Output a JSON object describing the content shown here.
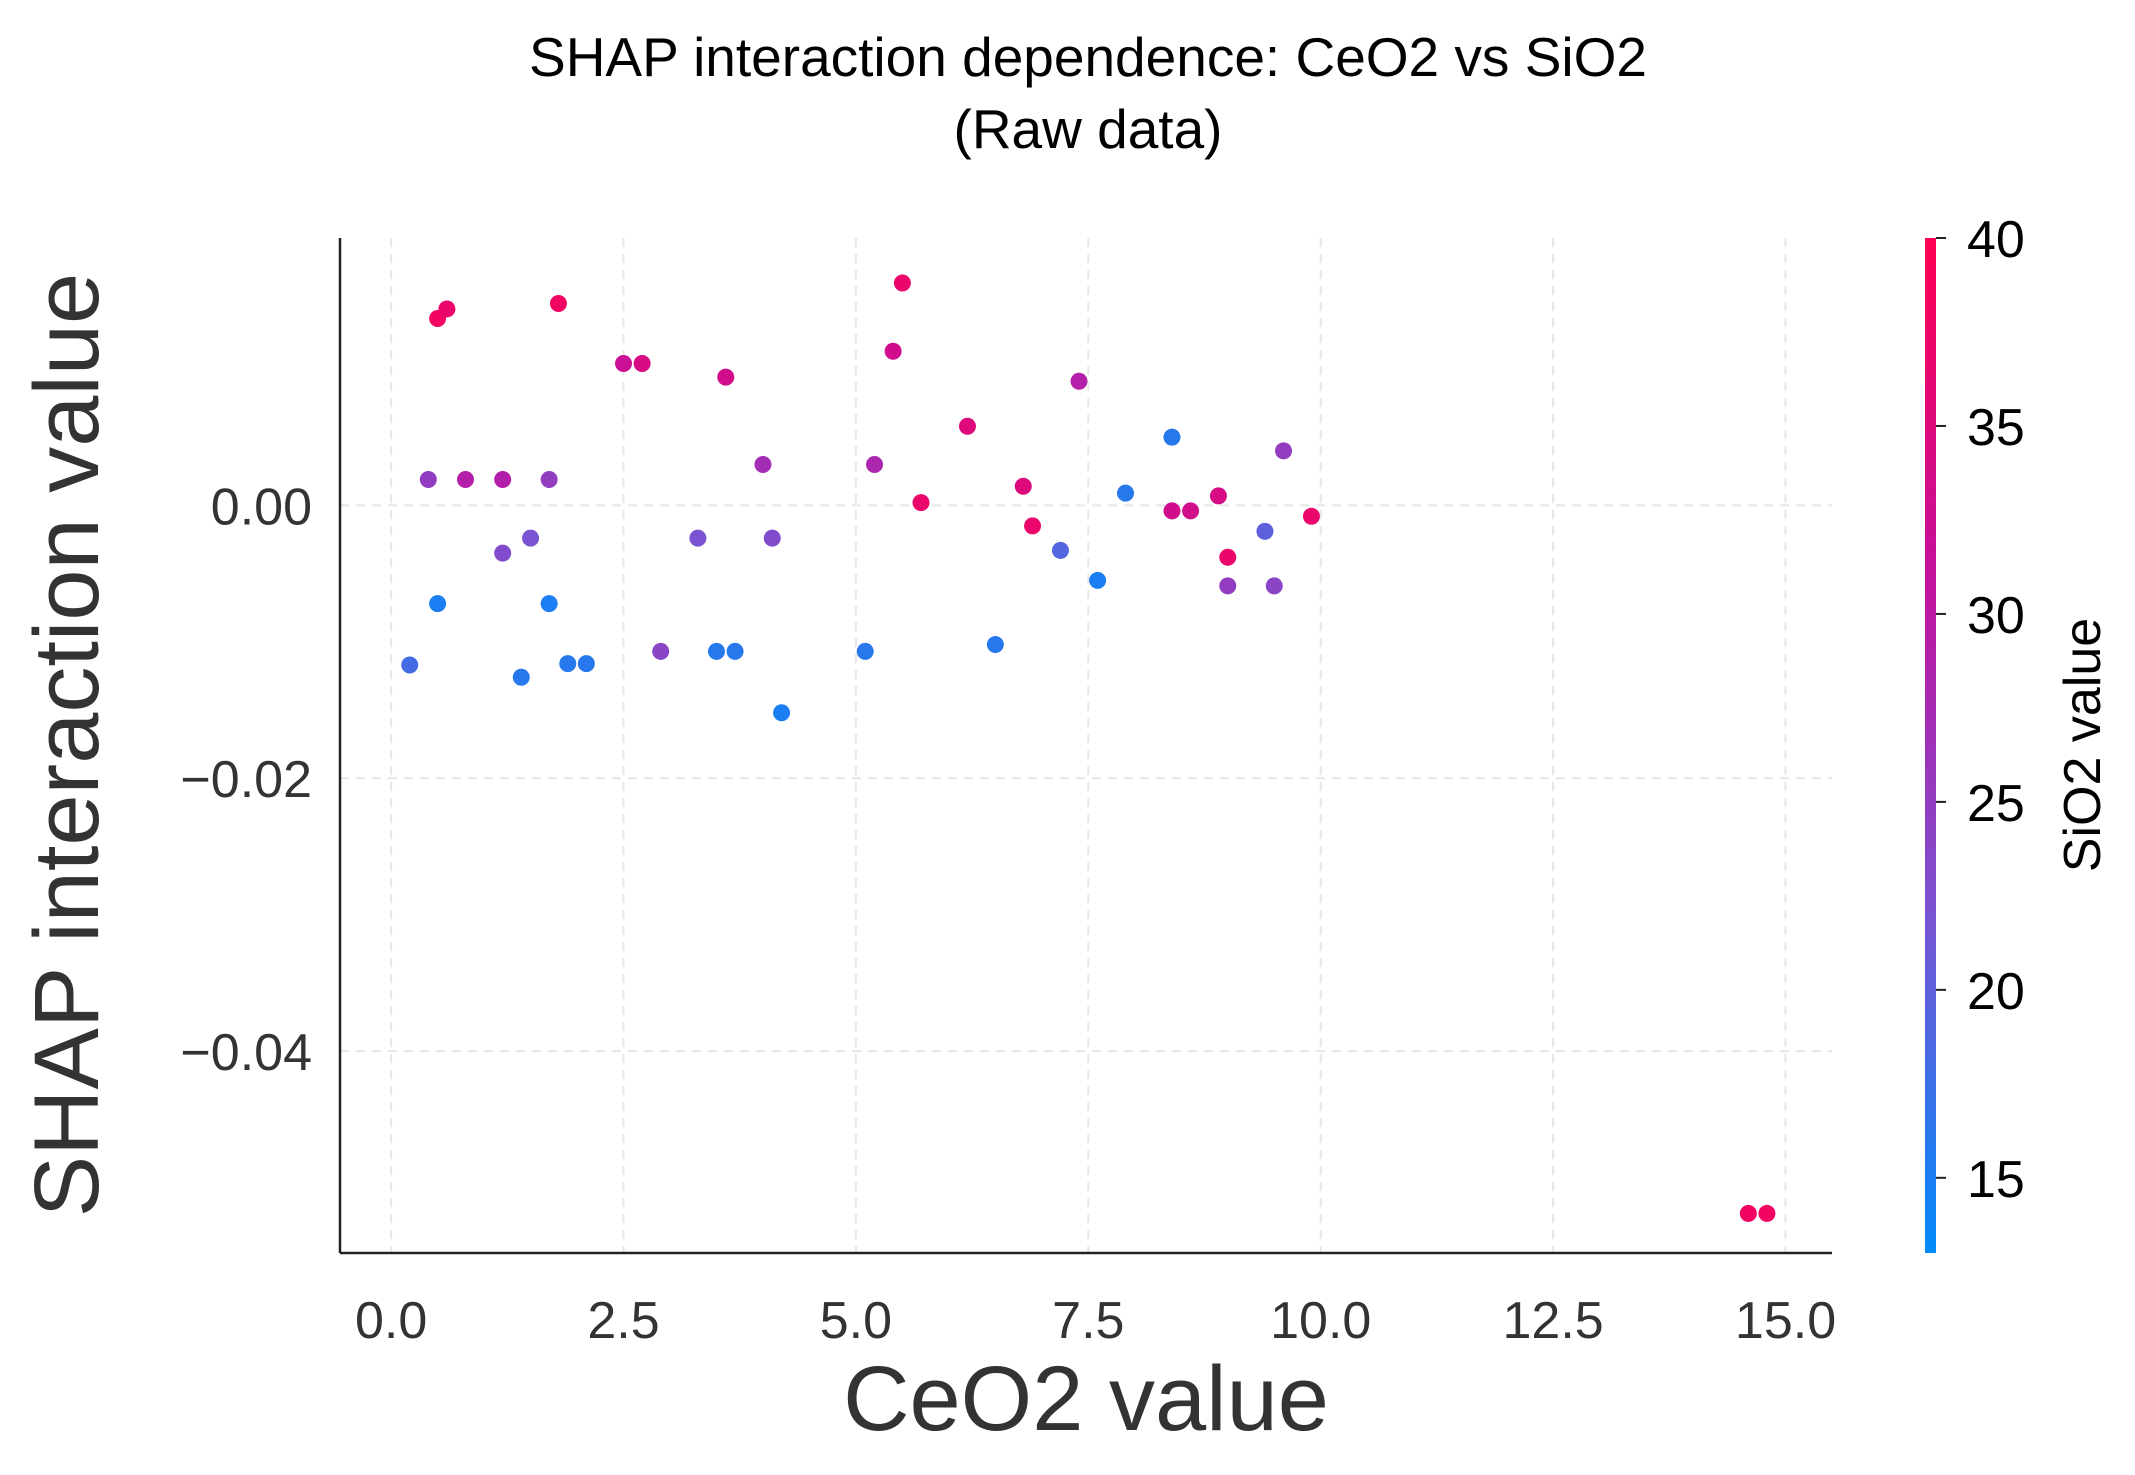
{
  "chart_data": {
    "type": "scatter",
    "title": "SHAP interaction dependence: CeO2 vs SiO2",
    "subtitle": "(Raw data)",
    "xlabel": "CeO2 value",
    "ylabel": "SHAP interaction value",
    "xlim": [
      -0.55,
      15.5
    ],
    "ylim": [
      -0.0548,
      0.0196
    ],
    "xticks": [
      0.0,
      2.5,
      5.0,
      7.5,
      10.0,
      12.5,
      15.0
    ],
    "xtick_labels": [
      "0.0",
      "2.5",
      "5.0",
      "7.5",
      "10.0",
      "12.5",
      "15.0"
    ],
    "yticks": [
      0.0,
      -0.02,
      -0.04
    ],
    "ytick_labels": [
      "0.00",
      "−0.02",
      "−0.04"
    ],
    "grid": true,
    "colorbar": {
      "label": "SiO2 value",
      "range": [
        13,
        40
      ],
      "ticks": [
        15,
        20,
        25,
        30,
        35,
        40
      ],
      "tick_labels": [
        "15",
        "20",
        "25",
        "30",
        "35",
        "40"
      ],
      "colors": [
        "#008afb",
        "#7854d2",
        "#c2129e",
        "#ff0052"
      ]
    },
    "points": [
      {
        "x": 0.2,
        "y": -0.0117,
        "c": 18
      },
      {
        "x": 0.4,
        "y": 0.0019,
        "c": 25
      },
      {
        "x": 0.5,
        "y": 0.0137,
        "c": 38
      },
      {
        "x": 0.5,
        "y": -0.0072,
        "c": 15
      },
      {
        "x": 0.6,
        "y": 0.0144,
        "c": 37
      },
      {
        "x": 0.8,
        "y": 0.0019,
        "c": 29
      },
      {
        "x": 1.2,
        "y": 0.0019,
        "c": 29
      },
      {
        "x": 1.2,
        "y": -0.0035,
        "c": 23
      },
      {
        "x": 1.4,
        "y": -0.0126,
        "c": 16
      },
      {
        "x": 1.5,
        "y": -0.0024,
        "c": 22
      },
      {
        "x": 1.7,
        "y": 0.0019,
        "c": 25
      },
      {
        "x": 1.7,
        "y": -0.0072,
        "c": 15
      },
      {
        "x": 1.8,
        "y": 0.0148,
        "c": 38
      },
      {
        "x": 1.9,
        "y": -0.0116,
        "c": 16
      },
      {
        "x": 2.1,
        "y": -0.0116,
        "c": 16
      },
      {
        "x": 2.5,
        "y": 0.0104,
        "c": 32
      },
      {
        "x": 2.7,
        "y": 0.0104,
        "c": 34
      },
      {
        "x": 2.9,
        "y": -0.0107,
        "c": 24
      },
      {
        "x": 3.3,
        "y": -0.0024,
        "c": 22
      },
      {
        "x": 3.5,
        "y": -0.0107,
        "c": 16
      },
      {
        "x": 3.6,
        "y": 0.0094,
        "c": 33
      },
      {
        "x": 3.7,
        "y": -0.0107,
        "c": 16
      },
      {
        "x": 4.0,
        "y": 0.003,
        "c": 27
      },
      {
        "x": 4.1,
        "y": -0.0024,
        "c": 23
      },
      {
        "x": 4.2,
        "y": -0.0152,
        "c": 15
      },
      {
        "x": 5.1,
        "y": -0.0107,
        "c": 16
      },
      {
        "x": 5.2,
        "y": 0.003,
        "c": 28
      },
      {
        "x": 5.4,
        "y": 0.0113,
        "c": 33
      },
      {
        "x": 5.5,
        "y": 0.0163,
        "c": 37
      },
      {
        "x": 5.7,
        "y": 0.0002,
        "c": 37
      },
      {
        "x": 6.2,
        "y": 0.0058,
        "c": 35
      },
      {
        "x": 6.5,
        "y": -0.0102,
        "c": 16
      },
      {
        "x": 6.8,
        "y": 0.0014,
        "c": 35
      },
      {
        "x": 6.9,
        "y": -0.0015,
        "c": 37
      },
      {
        "x": 7.2,
        "y": -0.0033,
        "c": 19
      },
      {
        "x": 7.4,
        "y": 0.0091,
        "c": 29
      },
      {
        "x": 7.6,
        "y": -0.0055,
        "c": 15
      },
      {
        "x": 7.9,
        "y": 0.0009,
        "c": 16
      },
      {
        "x": 8.4,
        "y": 0.005,
        "c": 16
      },
      {
        "x": 8.4,
        "y": -0.0004,
        "c": 33
      },
      {
        "x": 8.6,
        "y": -0.0004,
        "c": 33
      },
      {
        "x": 8.9,
        "y": 0.0007,
        "c": 34
      },
      {
        "x": 9.0,
        "y": -0.0038,
        "c": 37
      },
      {
        "x": 9.0,
        "y": -0.0059,
        "c": 25
      },
      {
        "x": 9.4,
        "y": -0.0019,
        "c": 20
      },
      {
        "x": 9.5,
        "y": -0.0059,
        "c": 24
      },
      {
        "x": 9.6,
        "y": 0.004,
        "c": 25
      },
      {
        "x": 9.9,
        "y": -0.0008,
        "c": 37
      },
      {
        "x": 14.6,
        "y": -0.0519,
        "c": 38
      },
      {
        "x": 14.8,
        "y": -0.0519,
        "c": 38
      }
    ]
  }
}
